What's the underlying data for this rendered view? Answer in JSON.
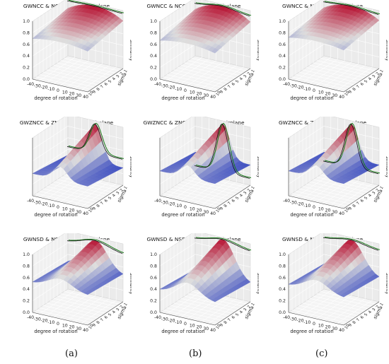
{
  "figure": {
    "captions": [
      "(a)",
      "(b)",
      "(c)"
    ]
  },
  "chart_data": [
    {
      "type": "surface3d",
      "title": "GWNCC & NCC for small airplane",
      "xlabel": "degree of rotation",
      "ylabel": "sigma",
      "zlabel": "similarity",
      "xticks": [
        "-40",
        "-30",
        "-20",
        "-10",
        "0",
        "10",
        "20",
        "30",
        "40"
      ],
      "yticks": [
        "10",
        "9",
        "8",
        "7",
        "6",
        "5",
        "4",
        "3",
        "2",
        "1"
      ],
      "zticks": [
        "0.0",
        "0.2",
        "0.4",
        "0.6",
        "0.8",
        "1.0"
      ],
      "zlim": [
        0,
        1
      ],
      "peak_z": 0.97,
      "min_z": 0.55,
      "curve_floor": 0.95,
      "profile": "broad"
    },
    {
      "type": "surface3d",
      "title": "GWNCC & NCC for medium airplane",
      "xlabel": "degree of rotation",
      "ylabel": "sigma",
      "zlabel": "similarity",
      "xticks": [
        "-40",
        "-30",
        "-20",
        "-10",
        "0",
        "10",
        "20",
        "30",
        "40"
      ],
      "yticks": [
        "10",
        "9",
        "8",
        "7",
        "6",
        "5",
        "4",
        "3",
        "2",
        "1"
      ],
      "zticks": [
        "0.0",
        "0.2",
        "0.4",
        "0.6",
        "0.8",
        "1.0"
      ],
      "zlim": [
        0,
        1
      ],
      "peak_z": 0.97,
      "min_z": 0.5,
      "curve_floor": 0.9,
      "profile": "broad"
    },
    {
      "type": "surface3d",
      "title": "GWNCC & NCC for big airplane",
      "xlabel": "degree of rotation",
      "ylabel": "sigma",
      "zlabel": "similarity",
      "xticks": [
        "-40",
        "-30",
        "-20",
        "-10",
        "0",
        "10",
        "20",
        "30",
        "40"
      ],
      "yticks": [
        "10",
        "9",
        "8",
        "7",
        "6",
        "5",
        "4",
        "3",
        "2",
        "1"
      ],
      "zticks": [
        "0.0",
        "0.2",
        "0.4",
        "0.6",
        "0.8",
        "1.0"
      ],
      "zlim": [
        0,
        1
      ],
      "peak_z": 0.97,
      "min_z": 0.58,
      "curve_floor": 0.93,
      "profile": "broad"
    },
    {
      "type": "surface3d",
      "title": "GWZNCC & ZNCC for small airplane",
      "xlabel": "degree of rotation",
      "ylabel": "sigma",
      "zlabel": "similarity",
      "xticks": [
        "-40",
        "-30",
        "-20",
        "-10",
        "0",
        "10",
        "20",
        "30",
        "40"
      ],
      "yticks": [
        "10",
        "9",
        "8",
        "7",
        "6",
        "5",
        "4",
        "3",
        "2",
        "1"
      ],
      "zticks": [],
      "zlim": [
        0,
        1
      ],
      "peak_z": 0.95,
      "min_z": 0.3,
      "curve_floor": 0.45,
      "profile": "peak"
    },
    {
      "type": "surface3d",
      "title": "GWZNCC & ZNCC for medium airplane",
      "xlabel": "degree of rotation",
      "ylabel": "sigma",
      "zlabel": "similarity",
      "xticks": [
        "-40",
        "-30",
        "-20",
        "-10",
        "0",
        "10",
        "20",
        "30",
        "40"
      ],
      "yticks": [
        "10",
        "9",
        "8",
        "7",
        "6",
        "5",
        "4",
        "3",
        "2",
        "1"
      ],
      "zticks": [],
      "zlim": [
        0,
        1
      ],
      "peak_z": 0.95,
      "min_z": 0.35,
      "curve_floor": 0.12,
      "profile": "peak"
    },
    {
      "type": "surface3d",
      "title": "GWZNCC & ZNCC for big airplane",
      "xlabel": "degree of rotation",
      "ylabel": "sigma",
      "zlabel": "similarity",
      "xticks": [
        "-40",
        "-30",
        "-20",
        "-10",
        "0",
        "10",
        "20",
        "30",
        "40"
      ],
      "yticks": [
        "10",
        "9",
        "8",
        "7",
        "6",
        "5",
        "4",
        "3",
        "2",
        "1"
      ],
      "zticks": [],
      "zlim": [
        0,
        1
      ],
      "peak_z": 0.95,
      "min_z": 0.35,
      "curve_floor": 0.2,
      "profile": "peak"
    },
    {
      "type": "surface3d",
      "title": "GWNSD & NSD for small airplane",
      "xlabel": "degree of rotation",
      "ylabel": "sigma",
      "zlabel": "similarity",
      "xticks": [
        "-40",
        "-30",
        "-20",
        "-10",
        "0",
        "10",
        "20",
        "30",
        "40"
      ],
      "yticks": [
        "10",
        "9",
        "8",
        "7",
        "6",
        "5",
        "4",
        "3",
        "2",
        "1"
      ],
      "zticks": [
        "0.0",
        "0.2",
        "0.4",
        "0.6",
        "0.8",
        "1.0"
      ],
      "zlim": [
        0,
        1
      ],
      "peak_z": 0.95,
      "min_z": 0.45,
      "curve_floor": 0.82,
      "profile": "mid"
    },
    {
      "type": "surface3d",
      "title": "GWNSD & NSD for medium airplane",
      "xlabel": "degree of rotation",
      "ylabel": "sigma",
      "zlabel": "similarity",
      "xticks": [
        "-40",
        "-30",
        "-20",
        "-10",
        "0",
        "10",
        "20",
        "30",
        "40"
      ],
      "yticks": [
        "10",
        "9",
        "8",
        "7",
        "6",
        "5",
        "4",
        "3",
        "2",
        "1"
      ],
      "zticks": [
        "0.0",
        "0.2",
        "0.4",
        "0.6",
        "0.8",
        "1.0"
      ],
      "zlim": [
        0,
        1
      ],
      "peak_z": 0.97,
      "min_z": 0.3,
      "curve_floor": 0.87,
      "profile": "mid"
    },
    {
      "type": "surface3d",
      "title": "GWNSD & NSD for big airplane",
      "xlabel": "degree of rotation",
      "ylabel": "sigma",
      "zlabel": "similarity",
      "xticks": [
        "-40",
        "-30",
        "-20",
        "-10",
        "0",
        "10",
        "20",
        "30",
        "40"
      ],
      "yticks": [
        "10",
        "9",
        "8",
        "7",
        "6",
        "5",
        "4",
        "3",
        "2",
        "1"
      ],
      "zticks": [
        "0.0",
        "0.2",
        "0.4",
        "0.6",
        "0.8",
        "1.0"
      ],
      "zlim": [
        0,
        1
      ],
      "peak_z": 0.96,
      "min_z": 0.4,
      "curve_floor": 0.88,
      "profile": "mid"
    }
  ]
}
